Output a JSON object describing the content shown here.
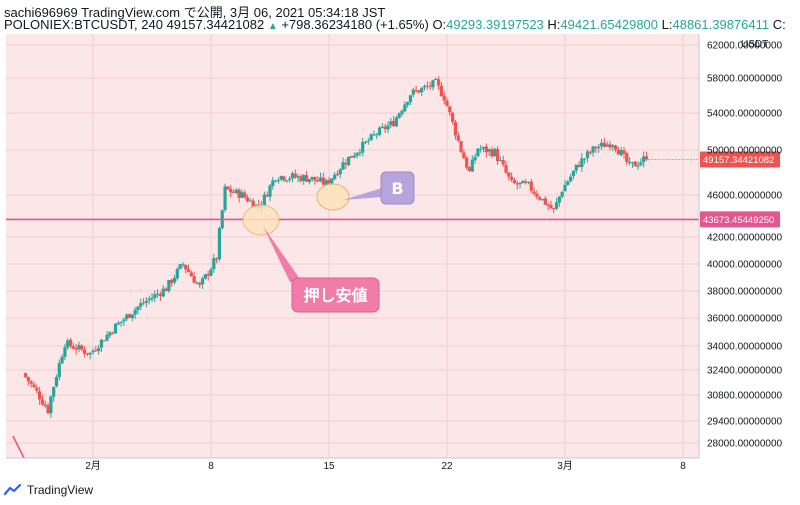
{
  "header": {
    "credit": "sachi696969 TradingView.com で公開, 3月 06, 2021 05:34:18 JST",
    "symbol": "POLONIEX:BTCUSDT, 240",
    "last": "49157.34421082",
    "change": "+798.36234180 (+1.65%)",
    "o_label": "O:",
    "o_value": "49293.39197523",
    "h_label": "H:",
    "h_value": "49421.65429800",
    "l_label": "L:",
    "l_value": "48861.39876411",
    "c_label": "C:"
  },
  "footer": {
    "brand": "TradingView",
    "logo_icon": "tradingview-logo-icon"
  },
  "colors": {
    "bg": "#fbe6e8",
    "up": "#26a69a",
    "down": "#ef5350",
    "support_line": "#e3568e",
    "price_tag": "#ef5350",
    "support_tag": "#e3568e",
    "callout_pink": "#f07ca8",
    "callout_purple": "#b7a4dc",
    "ellipse_fill": "#fde3c0"
  },
  "chart_data": {
    "type": "candlestick",
    "currency": "USDT",
    "interval_hours": 4,
    "x_tick_labels": [
      "2月",
      "8",
      "15",
      "22",
      "3月",
      "8"
    ],
    "y_tick_labels": [
      "62000.00000000",
      "58000.00000000",
      "54000.00000000",
      "50000.00000000",
      "46000.00000000",
      "42000.00000000",
      "40000.00000000",
      "38000.00000000",
      "36000.00000000",
      "34000.00000000",
      "32400.00000000",
      "30800.00000000",
      "29400.00000000",
      "28000.00000000"
    ],
    "y_ticks": [
      62000,
      58000,
      54000,
      50000,
      46000,
      42000,
      40000,
      38000,
      36000,
      34000,
      32400,
      30800,
      29400,
      28000
    ],
    "last_price": 49157.34421082,
    "last_price_label": "49157.34421082",
    "support_price": 43673.4544925,
    "support_price_label": "43673.45449250",
    "anchors": [
      [
        "2021-01-28 00:00",
        32200
      ],
      [
        "2021-01-29 12:00",
        30000
      ],
      [
        "2021-01-30 12:00",
        34200
      ],
      [
        "2021-02-01 00:00",
        33500
      ],
      [
        "2021-02-02 12:00",
        35400
      ],
      [
        "2021-02-04 00:00",
        37000
      ],
      [
        "2021-02-05 12:00",
        38200
      ],
      [
        "2021-02-06 12:00",
        40000
      ],
      [
        "2021-02-07 12:00",
        38300
      ],
      [
        "2021-02-08 12:00",
        40500
      ],
      [
        "2021-02-09 00:00",
        46500
      ],
      [
        "2021-02-10 00:00",
        46000
      ],
      [
        "2021-02-11 00:00",
        44800
      ],
      [
        "2021-02-12 00:00",
        47700
      ],
      [
        "2021-02-14 00:00",
        47500
      ],
      [
        "2021-02-15 00:00",
        47000
      ],
      [
        "2021-02-16 00:00",
        48800
      ],
      [
        "2021-02-17 00:00",
        50200
      ],
      [
        "2021-02-18 00:00",
        51800
      ],
      [
        "2021-02-19 00:00",
        53000
      ],
      [
        "2021-02-20 00:00",
        56200
      ],
      [
        "2021-02-21 12:00",
        57400
      ],
      [
        "2021-02-22 00:00",
        55800
      ],
      [
        "2021-02-23 00:00",
        50000
      ],
      [
        "2021-02-23 12:00",
        48000
      ],
      [
        "2021-02-24 00:00",
        50200
      ],
      [
        "2021-02-25 00:00",
        49800
      ],
      [
        "2021-02-26 00:00",
        47000
      ],
      [
        "2021-02-27 00:00",
        46800
      ],
      [
        "2021-02-28 12:00",
        44500
      ],
      [
        "2021-03-01 00:00",
        46500
      ],
      [
        "2021-03-02 00:00",
        48800
      ],
      [
        "2021-03-03 00:00",
        50300
      ],
      [
        "2021-03-04 00:00",
        50800
      ],
      [
        "2021-03-05 00:00",
        48500
      ],
      [
        "2021-03-05 20:00",
        49157
      ]
    ]
  },
  "annotations": {
    "label_b": "B",
    "label_push": "押し安値"
  }
}
